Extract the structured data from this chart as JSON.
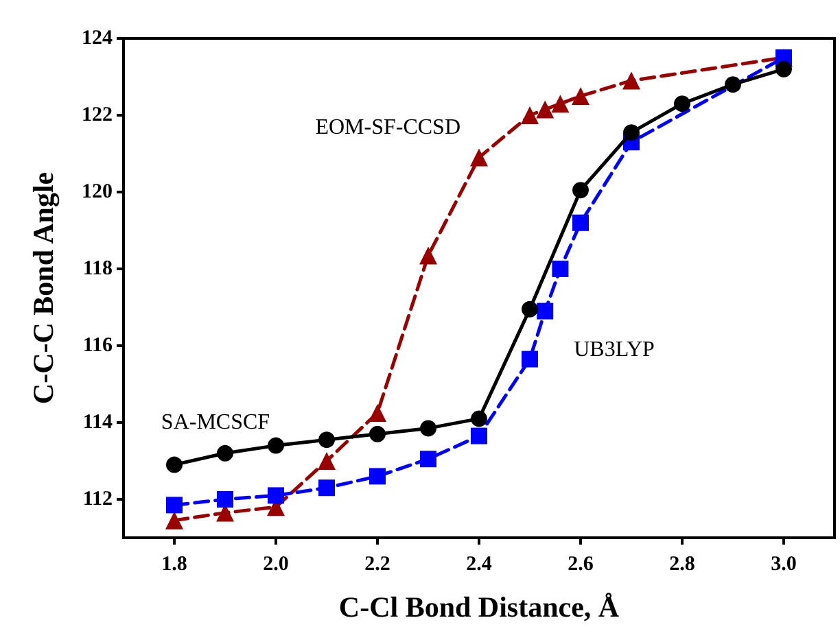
{
  "chart_data": {
    "type": "line",
    "xlabel": "C-Cl Bond Distance, Å",
    "ylabel": "C-C-C Bond Angle",
    "xlim": [
      1.7,
      3.1
    ],
    "xticks": [
      {
        "value": 1.8,
        "label": "1.8"
      },
      {
        "value": 2.0,
        "label": "2.0"
      },
      {
        "value": 2.2,
        "label": "2.2"
      },
      {
        "value": 2.4,
        "label": "2.4"
      },
      {
        "value": 2.6,
        "label": "2.6"
      },
      {
        "value": 2.8,
        "label": "2.8"
      },
      {
        "value": 3.0,
        "label": "3.0"
      }
    ],
    "ylim": [
      111,
      124
    ],
    "yticks": [
      112,
      114,
      116,
      118,
      120,
      122,
      124
    ],
    "grid": false,
    "legend": false,
    "series": [
      {
        "name": "SA-MCSCF",
        "color": "#000000",
        "marker": "circle",
        "line_style": "solid",
        "x": [
          1.8,
          1.9,
          2.0,
          2.1,
          2.2,
          2.3,
          2.4,
          2.5,
          2.6,
          2.7,
          2.8,
          2.9,
          3.0
        ],
        "values": [
          112.9,
          113.2,
          113.4,
          113.55,
          113.7,
          113.85,
          114.1,
          116.95,
          120.05,
          121.55,
          122.3,
          122.8,
          123.2
        ]
      },
      {
        "name": "UB3LYP",
        "color": "#0000ff",
        "marker": "square",
        "line_style": "dashed",
        "x": [
          1.8,
          1.9,
          2.0,
          2.1,
          2.2,
          2.3,
          2.4,
          2.5,
          2.53,
          2.56,
          2.6,
          2.7,
          3.0
        ],
        "values": [
          111.85,
          112.0,
          112.1,
          112.3,
          112.6,
          113.05,
          113.65,
          115.65,
          116.9,
          118.0,
          119.2,
          121.3,
          123.5
        ]
      },
      {
        "name": "EOM-SF-CCSD",
        "color": "#990000",
        "marker": "triangle",
        "line_style": "dashed",
        "x": [
          1.8,
          1.9,
          2.0,
          2.1,
          2.2,
          2.3,
          2.4,
          2.5,
          2.53,
          2.56,
          2.6,
          2.7,
          3.0
        ],
        "values": [
          111.45,
          111.65,
          111.8,
          113.0,
          114.25,
          118.35,
          120.9,
          122.0,
          122.15,
          122.3,
          122.5,
          122.9,
          123.5
        ]
      }
    ]
  }
}
